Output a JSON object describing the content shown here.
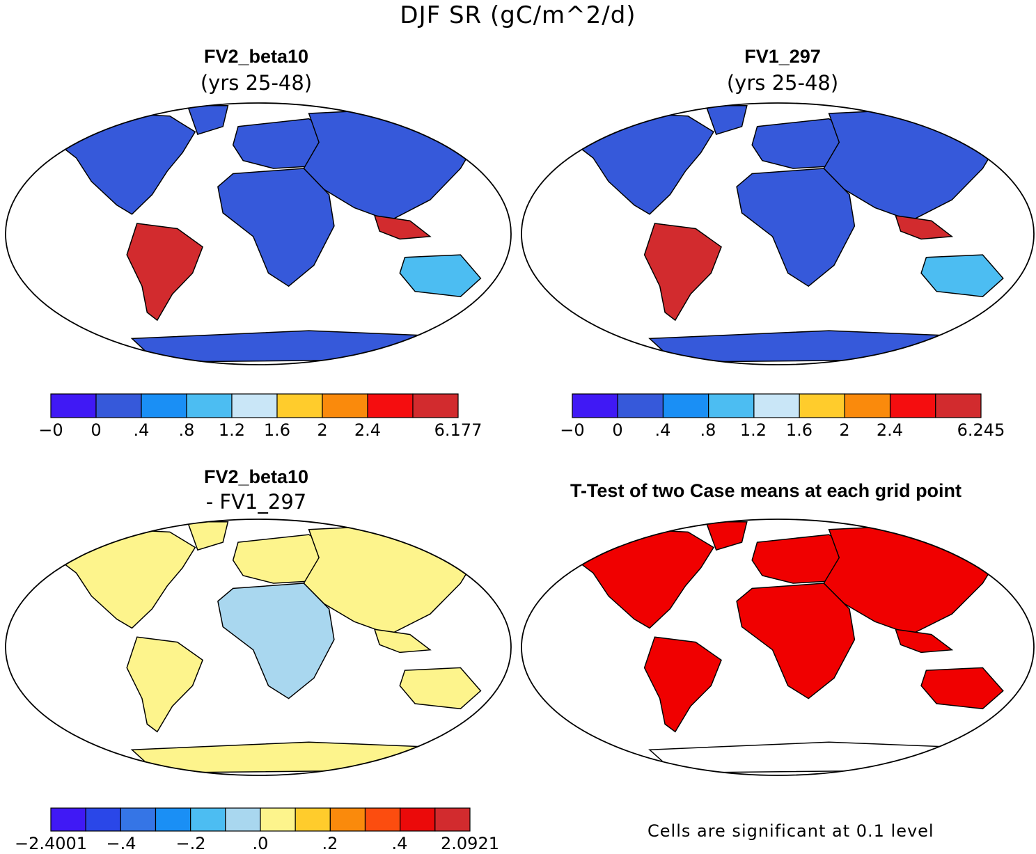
{
  "figure": {
    "title": "DJF SR (gC/m^2/d)",
    "note": "Cells are significant at 0.1 level"
  },
  "chart_data": [
    {
      "type": "heatmap",
      "id": "p1",
      "title": "FV2_beta10",
      "subtitle": "(yrs 25-48)",
      "colorbar": {
        "ticks": [
          "-0",
          "0",
          ".4",
          ".8",
          "1.2",
          "1.6",
          "2",
          "2.4",
          "6.177"
        ],
        "colors": [
          "#4019f5",
          "#3659da",
          "#1a8ff5",
          "#4cbdf2",
          "#c9e6f7",
          "#ffcc2c",
          "#fa8a0c",
          "#f50d0f",
          "#d22b2e"
        ]
      }
    },
    {
      "type": "heatmap",
      "id": "p2",
      "title": "FV1_297",
      "subtitle": "(yrs 25-48)",
      "colorbar": {
        "ticks": [
          "-0",
          "0",
          ".4",
          ".8",
          "1.2",
          "1.6",
          "2",
          "2.4",
          "6.245"
        ],
        "colors": [
          "#4019f5",
          "#3659da",
          "#1a8ff5",
          "#4cbdf2",
          "#c9e6f7",
          "#ffcc2c",
          "#fa8a0c",
          "#f50d0f",
          "#d22b2e"
        ]
      }
    },
    {
      "type": "heatmap",
      "id": "p3",
      "title": "FV2_beta10",
      "subtitle": "- FV1_297",
      "colorbar": {
        "ticks": [
          "-2.4001",
          "-.4",
          "-.2",
          ".0",
          ".2",
          ".4",
          "2.0921"
        ],
        "colors": [
          "#4019f5",
          "#2a47e8",
          "#3575e6",
          "#1a8ff5",
          "#4cbdf2",
          "#a9d7ef",
          "#fdf48c",
          "#ffcc2c",
          "#fa8a0c",
          "#fc4d0f",
          "#eb0a0a",
          "#d22b2e"
        ]
      }
    },
    {
      "type": "heatmap",
      "id": "p4",
      "title": "T-Test of two Case means at each grid point",
      "significant_color": "#f00000"
    }
  ]
}
